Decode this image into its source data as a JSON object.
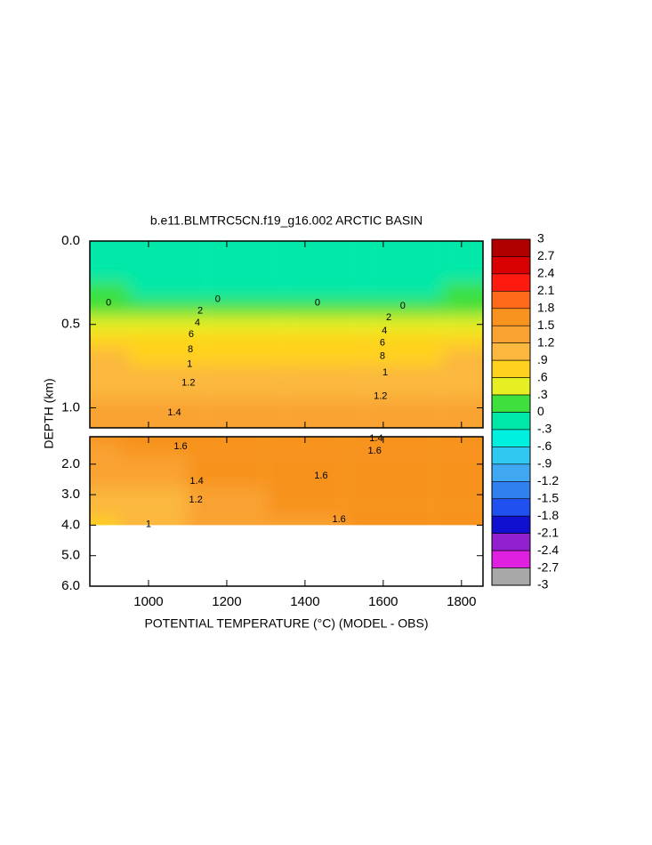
{
  "chart_data": {
    "type": "contour",
    "title": "b.e11.BLMTRC5CN.f19_g16.002 ARCTIC BASIN",
    "x_label": "POTENTIAL TEMPERATURE (°C) (MODEL - OBS)",
    "y_label": "DEPTH (km)",
    "xlim": [
      850,
      1855
    ],
    "xticks": [
      1000,
      1200,
      1400,
      1600,
      1800
    ],
    "panels": [
      {
        "ylim": [
          0,
          1.12
        ],
        "yticks": [
          {
            "value": 0,
            "label": "0.0"
          },
          {
            "value": 0.5,
            "label": "0.5"
          },
          {
            "value": 1.0,
            "label": "1.0"
          }
        ],
        "x": [
          850,
          1050,
          1250,
          1450,
          1650,
          1855
        ],
        "depths": [
          0,
          0.1,
          0.2,
          0.3,
          0.4,
          0.5,
          0.6,
          0.7,
          0.8,
          0.9,
          1.0,
          1.12
        ],
        "values": [
          [
            -0.2,
            -0.15,
            -0.2,
            -0.2,
            -0.15,
            -0.2
          ],
          [
            -0.1,
            -0.15,
            -0.2,
            -0.15,
            -0.1,
            -0.15
          ],
          [
            -0.2,
            -0.2,
            -0.25,
            -0.25,
            -0.2,
            -0.2
          ],
          [
            0.05,
            0.0,
            -0.05,
            -0.05,
            0.0,
            0.05
          ],
          [
            0.3,
            0.25,
            0.2,
            0.2,
            0.25,
            0.3
          ],
          [
            0.6,
            0.55,
            0.5,
            0.5,
            0.55,
            0.6
          ],
          [
            0.8,
            0.75,
            0.7,
            0.7,
            0.75,
            0.8
          ],
          [
            0.95,
            0.9,
            0.88,
            0.88,
            0.9,
            0.95
          ],
          [
            1.08,
            1.05,
            1.0,
            1.0,
            1.05,
            1.08
          ],
          [
            1.18,
            1.15,
            1.12,
            1.12,
            1.15,
            1.18
          ],
          [
            1.32,
            1.3,
            1.25,
            1.25,
            1.3,
            1.32
          ],
          [
            1.45,
            1.45,
            1.4,
            1.4,
            1.42,
            1.45
          ]
        ],
        "contour_labels": [
          {
            "text": "0",
            "x": 898,
            "depth": 0.37
          },
          {
            "text": "0",
            "x": 1177,
            "depth": 0.35
          },
          {
            "text": "0",
            "x": 1432,
            "depth": 0.37
          },
          {
            "text": "0",
            "x": 1650,
            "depth": 0.39
          },
          {
            "text": "2",
            "x": 1132,
            "depth": 0.42
          },
          {
            "text": "4",
            "x": 1125,
            "depth": 0.49
          },
          {
            "text": "6",
            "x": 1109,
            "depth": 0.56
          },
          {
            "text": "8",
            "x": 1107,
            "depth": 0.65
          },
          {
            "text": "1",
            "x": 1105,
            "depth": 0.74
          },
          {
            "text": "1.2",
            "x": 1102,
            "depth": 0.85
          },
          {
            "text": "1.4",
            "x": 1066,
            "depth": 1.03
          },
          {
            "text": "2",
            "x": 1614,
            "depth": 0.46
          },
          {
            "text": "4",
            "x": 1603,
            "depth": 0.54
          },
          {
            "text": "6",
            "x": 1598,
            "depth": 0.61
          },
          {
            "text": "8",
            "x": 1598,
            "depth": 0.69
          },
          {
            "text": "1",
            "x": 1605,
            "depth": 0.79
          },
          {
            "text": "1.2",
            "x": 1593,
            "depth": 0.93
          }
        ]
      },
      {
        "ylim": [
          1.1,
          6.0
        ],
        "yticks": [
          {
            "value": 2,
            "label": "2.0"
          },
          {
            "value": 3,
            "label": "3.0"
          },
          {
            "value": 4,
            "label": "4.0"
          },
          {
            "value": 5,
            "label": "5.0"
          },
          {
            "value": 6,
            "label": "6.0"
          }
        ],
        "x": [
          850,
          1000,
          1200,
          1400,
          1600,
          1855
        ],
        "depths": [
          1.1,
          1.5,
          2,
          2.5,
          3,
          3.5,
          4
        ],
        "values": [
          [
            1.55,
            1.6,
            1.6,
            1.6,
            1.6,
            1.6
          ],
          [
            1.5,
            1.55,
            1.6,
            1.65,
            1.65,
            1.65
          ],
          [
            1.45,
            1.5,
            1.6,
            1.65,
            1.65,
            1.65
          ],
          [
            1.3,
            1.4,
            1.55,
            1.62,
            1.65,
            1.65
          ],
          [
            1.1,
            1.2,
            1.45,
            1.58,
            1.62,
            1.65
          ],
          [
            0.95,
            1.05,
            1.35,
            1.55,
            1.6,
            1.65
          ],
          [
            0.85,
            0.95,
            1.3,
            1.5,
            1.58,
            1.62
          ]
        ],
        "contour_labels": [
          {
            "text": "1.6",
            "x": 1082,
            "depth": 1.42
          },
          {
            "text": "1.4",
            "x": 1582,
            "depth": 1.16
          },
          {
            "text": "1.6",
            "x": 1578,
            "depth": 1.57
          },
          {
            "text": "1.6",
            "x": 1441,
            "depth": 2.38
          },
          {
            "text": "1.4",
            "x": 1123,
            "depth": 2.56
          },
          {
            "text": "1.2",
            "x": 1121,
            "depth": 3.17
          },
          {
            "text": "1",
            "x": 1000,
            "depth": 3.98
          },
          {
            "text": "1.6",
            "x": 1487,
            "depth": 3.81
          }
        ]
      }
    ],
    "colorbar": {
      "ticks": [
        {
          "value": 3,
          "label": "3"
        },
        {
          "value": 2.7,
          "label": "2.7"
        },
        {
          "value": 2.4,
          "label": "2.4"
        },
        {
          "value": 2.1,
          "label": "2.1"
        },
        {
          "value": 1.8,
          "label": "1.8"
        },
        {
          "value": 1.5,
          "label": "1.5"
        },
        {
          "value": 1.2,
          "label": "1.2"
        },
        {
          "value": 0.9,
          "label": ".9"
        },
        {
          "value": 0.6,
          "label": ".6"
        },
        {
          "value": 0.3,
          "label": ".3"
        },
        {
          "value": 0,
          "label": "0"
        },
        {
          "value": -0.3,
          "label": "-.3"
        },
        {
          "value": -0.6,
          "label": "-.6"
        },
        {
          "value": -0.9,
          "label": "-.9"
        },
        {
          "value": -1.2,
          "label": "-1.2"
        },
        {
          "value": -1.5,
          "label": "-1.5"
        },
        {
          "value": -1.8,
          "label": "-1.8"
        },
        {
          "value": -2.1,
          "label": "-2.1"
        },
        {
          "value": -2.4,
          "label": "-2.4"
        },
        {
          "value": -2.7,
          "label": "-2.7"
        },
        {
          "value": -3,
          "label": "-3"
        }
      ],
      "colors": [
        "#b00000",
        "#d80000",
        "#ff1a10",
        "#ff6a1a",
        "#f7931e",
        "#f9a232",
        "#fbb73e",
        "#ffd21e",
        "#e6ef22",
        "#3ee03e",
        "#00e8a8",
        "#00f0e0",
        "#30c8f0",
        "#40a8f0",
        "#3080f0",
        "#2050f0",
        "#1010d0",
        "#9020d0",
        "#e020e0",
        "#a8a8a8"
      ]
    }
  }
}
